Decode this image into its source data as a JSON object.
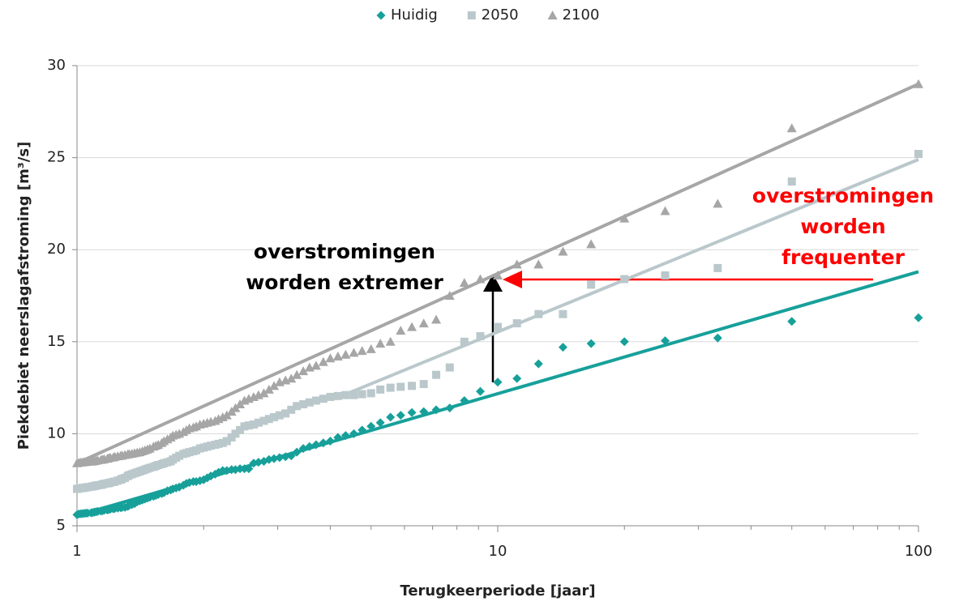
{
  "chart_data": {
    "type": "scatter",
    "xlabel": "Terugkeerperiode [jaar]",
    "ylabel": "Piekdebiet neerslagafstroming [m³/s]",
    "xscale": "log",
    "xlim": [
      1,
      100
    ],
    "xticks": [
      1,
      10,
      100
    ],
    "xminor_ticks": [
      2,
      3,
      4,
      5,
      6,
      7,
      8,
      9,
      20,
      30,
      40,
      50,
      60,
      70,
      80,
      90
    ],
    "ylim": [
      5,
      30
    ],
    "yticks": [
      5,
      10,
      15,
      20,
      25,
      30
    ],
    "grid": true,
    "legend": "top",
    "x": [
      100,
      50,
      33.33,
      25,
      20,
      16.67,
      14.29,
      12.5,
      11.11,
      10,
      9.09,
      8.33,
      7.69,
      7.14,
      6.67,
      6.25,
      5.88,
      5.56,
      5.26,
      5,
      4.76,
      4.55,
      4.35,
      4.17,
      4,
      3.85,
      3.7,
      3.57,
      3.45,
      3.33,
      3.23,
      3.13,
      3.03,
      2.94,
      2.86,
      2.78,
      2.7,
      2.63,
      2.56,
      2.5,
      2.44,
      2.38,
      2.33,
      2.27,
      2.22,
      2.17,
      2.13,
      2.08,
      2.04,
      2,
      1.96,
      1.92,
      1.89,
      1.85,
      1.82,
      1.79,
      1.75,
      1.72,
      1.69,
      1.67,
      1.64,
      1.61,
      1.59,
      1.56,
      1.54,
      1.52,
      1.49,
      1.47,
      1.45,
      1.43,
      1.41,
      1.39,
      1.37,
      1.35,
      1.33,
      1.32,
      1.3,
      1.28,
      1.27,
      1.25,
      1.23,
      1.22,
      1.2,
      1.19,
      1.18,
      1.16,
      1.15,
      1.14,
      1.12,
      1.11,
      1.1,
      1.09,
      1.08,
      1.06,
      1.05,
      1.04,
      1.03,
      1.02,
      1.01,
      1
    ],
    "series": [
      {
        "name": "Huidig",
        "color": "#17a09a",
        "marker": "diamond",
        "values": [
          16.3,
          16.1,
          15.2,
          15.05,
          15.0,
          14.9,
          14.7,
          13.8,
          13.0,
          12.8,
          12.3,
          11.8,
          11.4,
          11.3,
          11.2,
          11.15,
          11.0,
          10.9,
          10.6,
          10.4,
          10.2,
          10.0,
          9.9,
          9.8,
          9.6,
          9.5,
          9.4,
          9.3,
          9.2,
          9.0,
          8.8,
          8.75,
          8.7,
          8.65,
          8.6,
          8.5,
          8.45,
          8.4,
          8.1,
          8.1,
          8.1,
          8.05,
          8.05,
          8.0,
          8.0,
          7.9,
          7.8,
          7.7,
          7.6,
          7.5,
          7.45,
          7.4,
          7.4,
          7.35,
          7.3,
          7.2,
          7.1,
          7.05,
          7.0,
          6.95,
          6.9,
          6.8,
          6.75,
          6.7,
          6.65,
          6.6,
          6.55,
          6.5,
          6.45,
          6.4,
          6.35,
          6.3,
          6.2,
          6.15,
          6.1,
          6.05,
          6.0,
          6.0,
          5.98,
          5.96,
          5.94,
          5.92,
          5.9,
          5.88,
          5.86,
          5.84,
          5.82,
          5.8,
          5.78,
          5.76,
          5.74,
          5.72,
          5.7,
          5.69,
          5.68,
          5.67,
          5.66,
          5.65,
          5.64,
          5.6
        ]
      },
      {
        "name": "2050",
        "color": "#bac8cc",
        "marker": "square",
        "values": [
          25.2,
          23.7,
          19.0,
          18.6,
          18.4,
          18.1,
          16.5,
          16.5,
          16.0,
          15.8,
          15.3,
          15.0,
          13.6,
          13.2,
          12.7,
          12.6,
          12.55,
          12.5,
          12.4,
          12.2,
          12.15,
          12.1,
          12.1,
          12.05,
          12.0,
          11.9,
          11.8,
          11.7,
          11.6,
          11.5,
          11.3,
          11.1,
          11.0,
          10.9,
          10.8,
          10.7,
          10.6,
          10.5,
          10.45,
          10.4,
          10.2,
          10.0,
          9.8,
          9.6,
          9.5,
          9.45,
          9.4,
          9.35,
          9.3,
          9.25,
          9.2,
          9.1,
          9.05,
          9.0,
          8.95,
          8.9,
          8.8,
          8.7,
          8.6,
          8.5,
          8.45,
          8.4,
          8.35,
          8.3,
          8.25,
          8.2,
          8.15,
          8.1,
          8.05,
          8.0,
          7.95,
          7.9,
          7.85,
          7.8,
          7.75,
          7.7,
          7.6,
          7.55,
          7.5,
          7.45,
          7.4,
          7.38,
          7.35,
          7.32,
          7.3,
          7.28,
          7.25,
          7.22,
          7.2,
          7.18,
          7.16,
          7.14,
          7.12,
          7.1,
          7.08,
          7.06,
          7.05,
          7.04,
          7.02,
          7.0
        ]
      },
      {
        "name": "2100",
        "color": "#a6a6a6",
        "marker": "triangle",
        "values": [
          29.0,
          26.6,
          22.5,
          22.1,
          21.7,
          20.3,
          19.9,
          19.2,
          19.2,
          18.6,
          18.4,
          18.2,
          17.5,
          16.2,
          16.0,
          15.8,
          15.6,
          15.0,
          14.9,
          14.6,
          14.5,
          14.4,
          14.3,
          14.2,
          14.1,
          13.9,
          13.7,
          13.6,
          13.4,
          13.2,
          13.0,
          12.9,
          12.8,
          12.6,
          12.4,
          12.2,
          12.1,
          12.0,
          11.9,
          11.8,
          11.6,
          11.4,
          11.2,
          11.0,
          10.9,
          10.8,
          10.7,
          10.65,
          10.6,
          10.55,
          10.5,
          10.4,
          10.35,
          10.3,
          10.2,
          10.1,
          10.0,
          9.95,
          9.9,
          9.8,
          9.7,
          9.6,
          9.5,
          9.4,
          9.35,
          9.3,
          9.2,
          9.15,
          9.1,
          9.05,
          9.0,
          8.98,
          8.95,
          8.92,
          8.9,
          8.88,
          8.85,
          8.82,
          8.8,
          8.78,
          8.75,
          8.72,
          8.7,
          8.68,
          8.65,
          8.62,
          8.6,
          8.58,
          8.56,
          8.54,
          8.52,
          8.5,
          8.49,
          8.48,
          8.47,
          8.46,
          8.45,
          8.44,
          8.43,
          8.4
        ]
      }
    ],
    "trendlines": [
      {
        "color": "#17a09a",
        "x": [
          1,
          100
        ],
        "values": [
          5.55,
          18.8
        ]
      },
      {
        "color": "#bac8cc",
        "x": [
          4.3,
          100
        ],
        "values": [
          12.1,
          24.9
        ]
      },
      {
        "color": "#a6a6a6",
        "x": [
          1,
          100
        ],
        "values": [
          8.4,
          29.0
        ]
      }
    ],
    "annotations": [
      {
        "lines": [
          "overstromingen",
          "worden extremer"
        ],
        "color": "#000000"
      },
      {
        "lines": [
          "overstromingen",
          "worden",
          "frequenter"
        ],
        "color": "#ff0000"
      }
    ]
  }
}
